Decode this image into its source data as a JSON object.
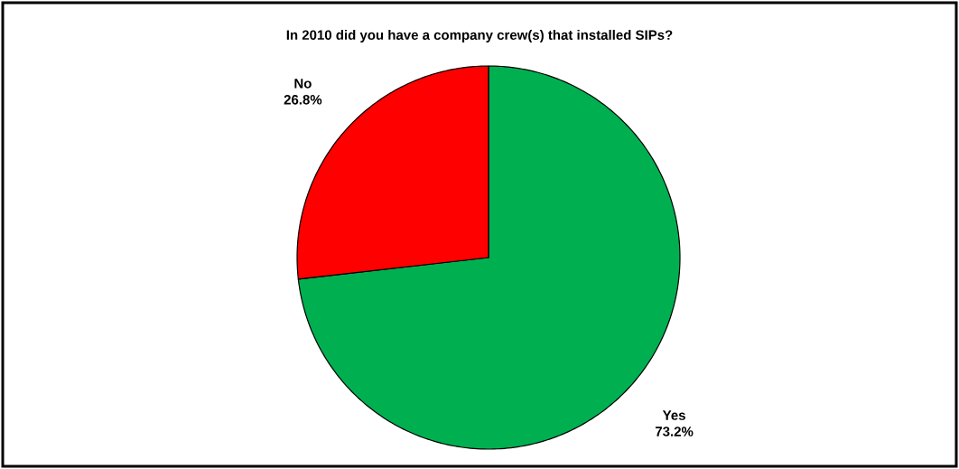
{
  "chart_data": {
    "type": "pie",
    "title": "In 2010 did you have a company crew(s) that installed SIPs?",
    "categories": [
      "Yes",
      "No"
    ],
    "values": [
      73.2,
      26.8
    ],
    "value_labels": [
      "73.2%",
      "26.8%"
    ],
    "colors": [
      "#00b050",
      "#ff0000"
    ]
  }
}
